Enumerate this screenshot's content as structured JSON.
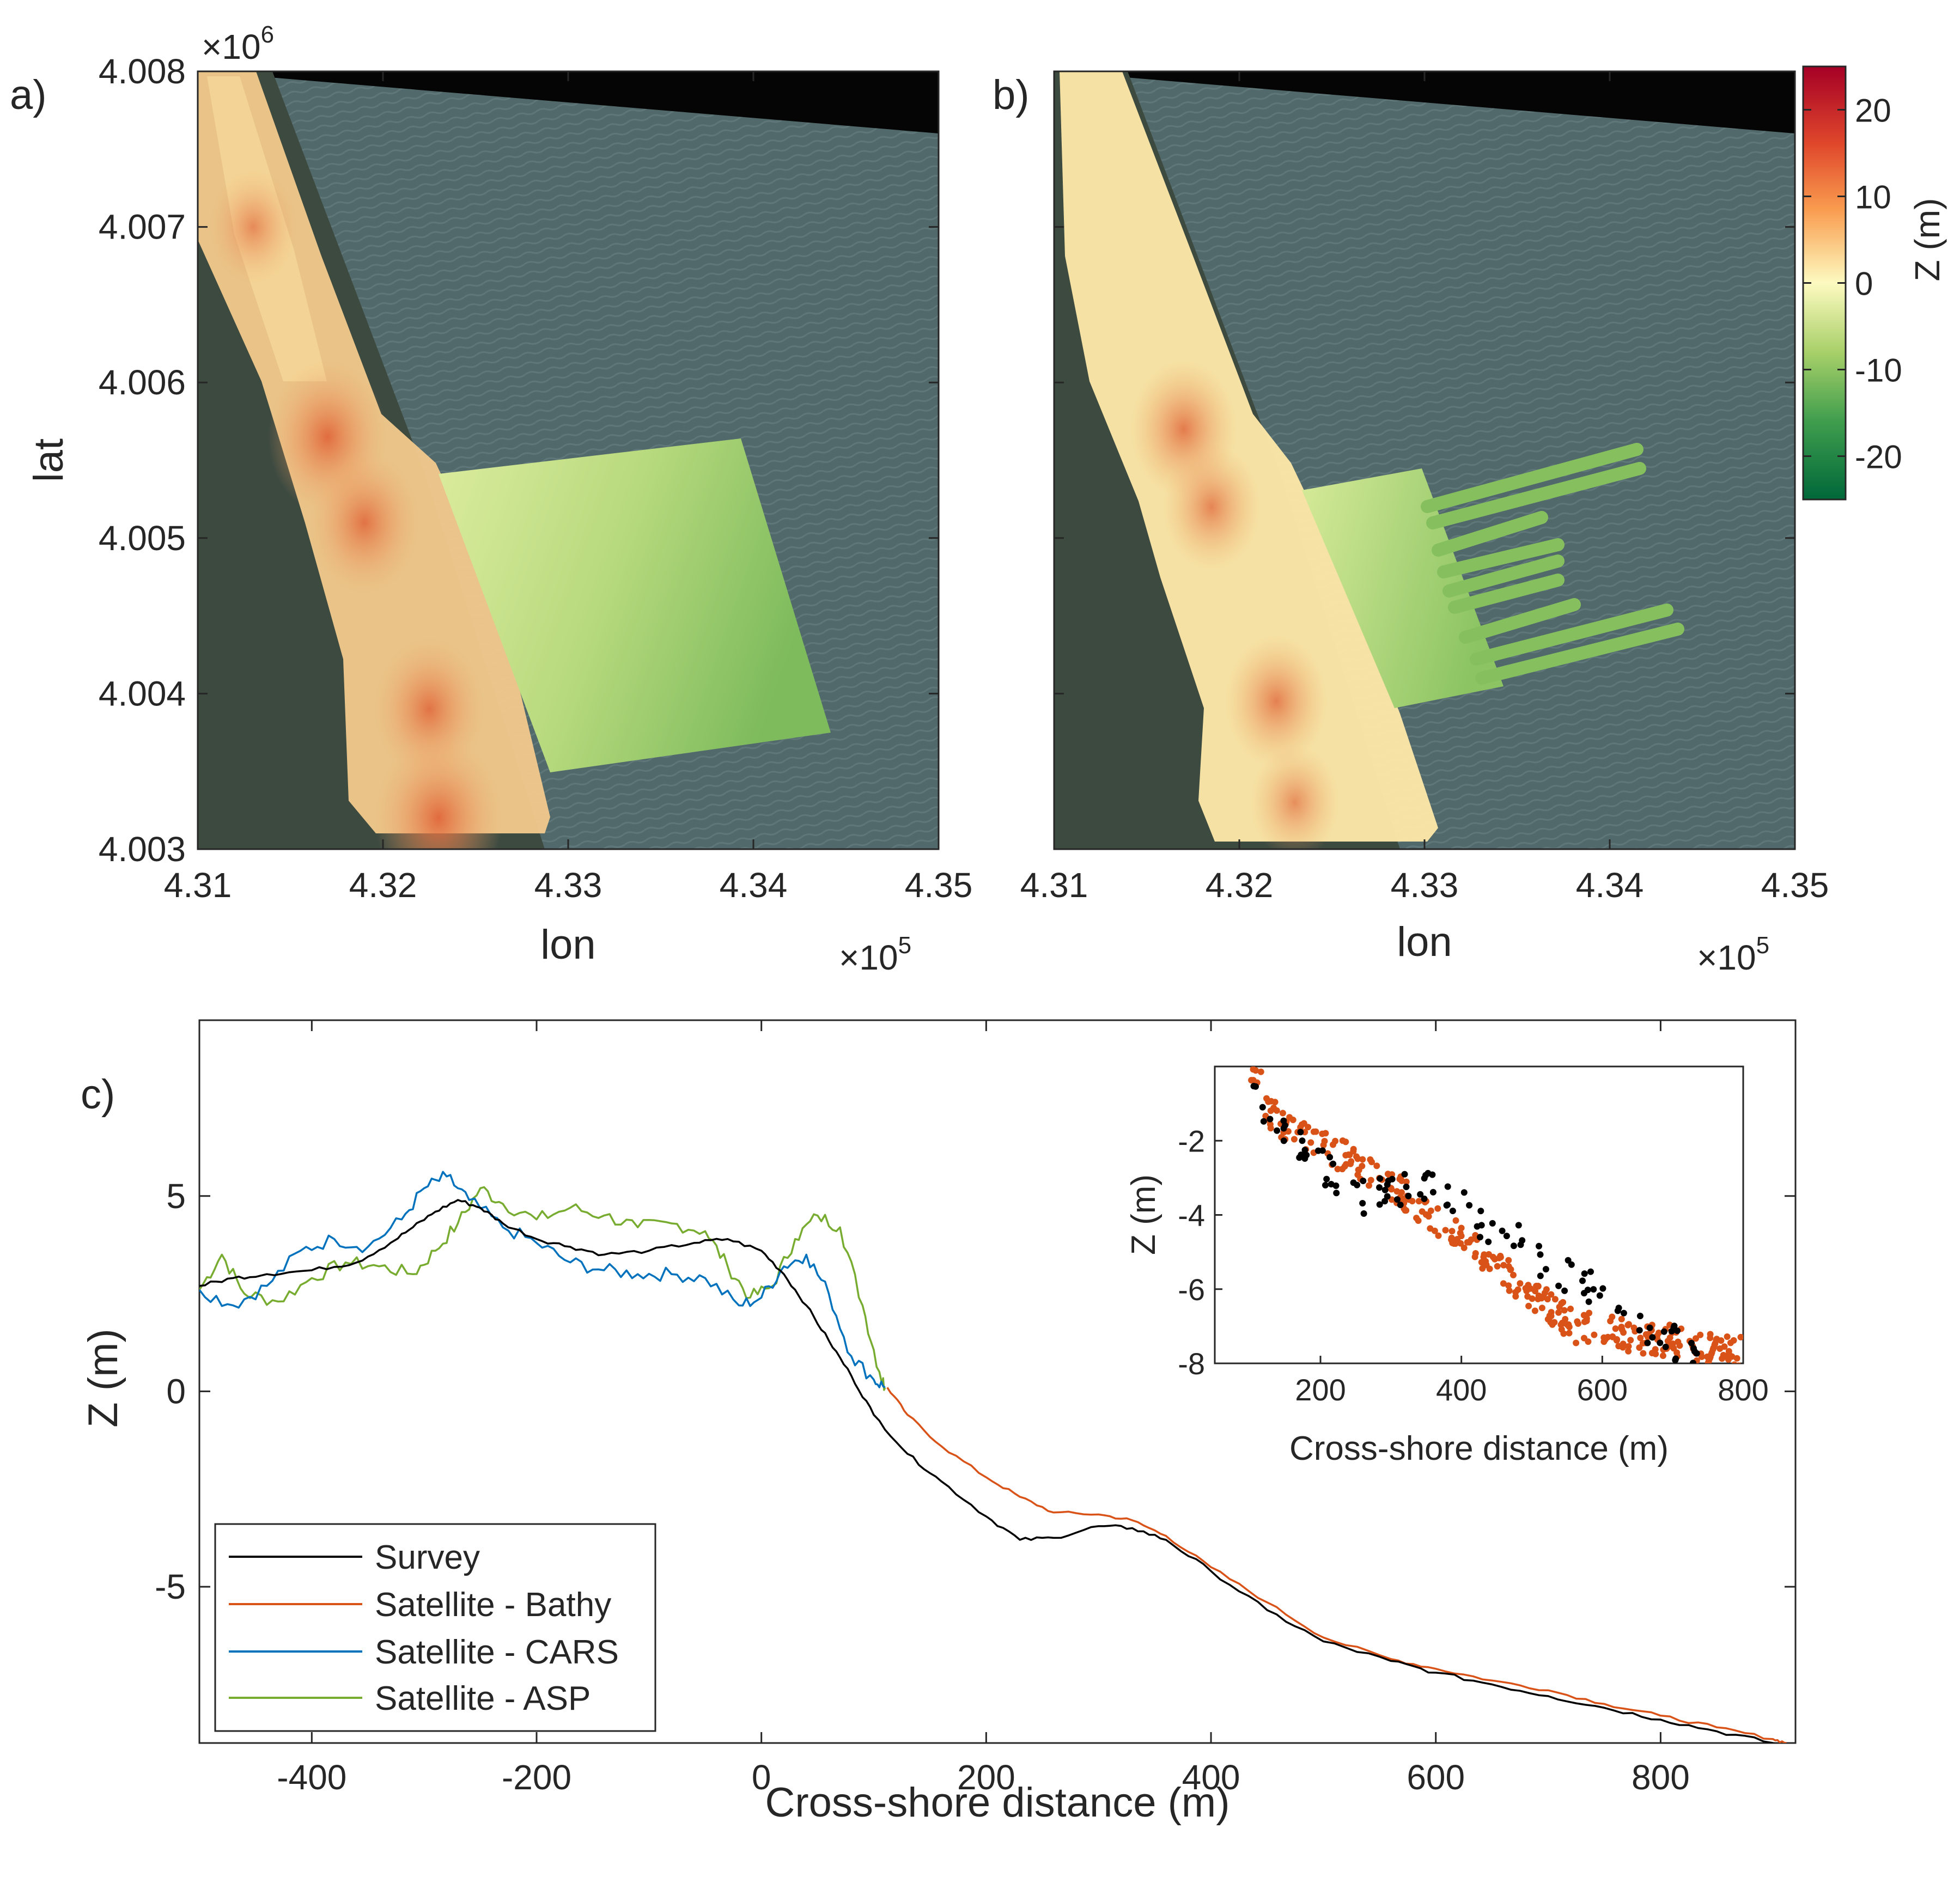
{
  "colors": {
    "survey": "#000000",
    "bathy": "#D95319",
    "cars": "#0072BD",
    "asp": "#77AC30",
    "axis": "#262626",
    "water": "#51686a",
    "land": "#3f4b43",
    "nodata": "#050505"
  },
  "chart_data": [
    {
      "id": "a",
      "type": "heatmap",
      "panel_label": "a)",
      "xlabel": "lon",
      "ylabel": "lat",
      "xlim": [
        431000,
        435000
      ],
      "ylim": [
        4003000,
        4008000
      ],
      "x_ticks": [
        "4.31",
        "4.32",
        "4.33",
        "4.34",
        "4.35"
      ],
      "y_ticks": [
        "4.003",
        "4.004",
        "4.005",
        "4.006",
        "4.007",
        "4.008"
      ],
      "x_exponent": {
        "base": "×10",
        "exp": "5"
      },
      "y_exponent": {
        "base": "×10",
        "exp": "6"
      },
      "description": "Elevation points (land dunes) and survey grid (bathymetry) over satellite imagery",
      "hotspots": [
        {
          "lon": 431700,
          "lat": 4005650,
          "z": 16
        },
        {
          "lon": 431900,
          "lat": 4005100,
          "z": 14
        },
        {
          "lon": 432250,
          "lat": 4003900,
          "z": 14
        },
        {
          "lon": 431300,
          "lat": 4007000,
          "z": 9
        },
        {
          "lon": 432300,
          "lat": 4003200,
          "z": 18
        }
      ]
    },
    {
      "id": "b",
      "type": "heatmap",
      "panel_label": "b)",
      "xlabel": "lon",
      "ylabel": "",
      "xlim": [
        431000,
        435000
      ],
      "ylim": [
        4003000,
        4008000
      ],
      "x_ticks": [
        "4.31",
        "4.32",
        "4.33",
        "4.34",
        "4.35"
      ],
      "x_exponent": {
        "base": "×10",
        "exp": "5"
      },
      "description": "Satellite-derived elevation with transect strips extending offshore",
      "hotspots": [
        {
          "lon": 431700,
          "lat": 4005700,
          "z": 13
        },
        {
          "lon": 431850,
          "lat": 4005200,
          "z": 11
        },
        {
          "lon": 432200,
          "lat": 4003950,
          "z": 12
        },
        {
          "lon": 432300,
          "lat": 4003300,
          "z": 9
        }
      ],
      "colorbar": {
        "label": "Z (m)",
        "range": [
          -25,
          25
        ],
        "ticks": [
          "20",
          "10",
          "0",
          "-10",
          "-20"
        ],
        "colormap": "green-yellow-red"
      }
    },
    {
      "id": "c",
      "type": "line",
      "panel_label": "c)",
      "xlabel": "Cross-shore distance (m)",
      "ylabel": "Z (m)",
      "xlim": [
        -500,
        920
      ],
      "ylim": [
        -9,
        9.5
      ],
      "x_ticks": [
        "-400",
        "-200",
        "0",
        "200",
        "400",
        "600",
        "800"
      ],
      "y_ticks": [
        "5",
        "0",
        "-5"
      ],
      "legend": [
        "Survey",
        "Satellite - Bathy",
        "Satellite - CARS",
        "Satellite - ASP"
      ],
      "legend_position": "bottom-left",
      "series": [
        {
          "name": "Survey",
          "x": [
            -500,
            -470,
            -440,
            -400,
            -360,
            -330,
            -310,
            -290,
            -270,
            -250,
            -230,
            -200,
            -170,
            -140,
            -100,
            -60,
            -30,
            0,
            20,
            40,
            60,
            80,
            100,
            130,
            160,
            200,
            230,
            260,
            300,
            330,
            360,
            400,
            450,
            500,
            560,
            600,
            650,
            700,
            750,
            800,
            850,
            900,
            910
          ],
          "y": [
            2.7,
            2.9,
            3.0,
            3.1,
            3.3,
            3.8,
            4.2,
            4.6,
            4.9,
            4.7,
            4.3,
            3.9,
            3.7,
            3.5,
            3.6,
            3.8,
            3.9,
            3.6,
            3.0,
            2.2,
            1.3,
            0.4,
            -0.6,
            -1.6,
            -2.3,
            -3.2,
            -3.8,
            -3.75,
            -3.45,
            -3.5,
            -3.8,
            -4.6,
            -5.6,
            -6.4,
            -6.9,
            -7.2,
            -7.5,
            -7.8,
            -8.1,
            -8.4,
            -8.7,
            -9.0,
            -9.1
          ]
        },
        {
          "name": "Satellite - Bathy",
          "x": [
            112,
            130,
            160,
            200,
            230,
            260,
            300,
            330,
            360,
            400,
            450,
            500,
            560,
            600,
            650,
            700,
            750,
            800,
            850,
            900,
            912
          ],
          "y": [
            0.1,
            -0.6,
            -1.4,
            -2.2,
            -2.7,
            -3.1,
            -3.15,
            -3.3,
            -3.7,
            -4.5,
            -5.4,
            -6.3,
            -6.85,
            -7.1,
            -7.4,
            -7.65,
            -8.0,
            -8.3,
            -8.6,
            -8.9,
            -9.0
          ]
        },
        {
          "name": "Satellite - CARS",
          "x": [
            -500,
            -470,
            -440,
            -410,
            -380,
            -350,
            -320,
            -300,
            -280,
            -260,
            -230,
            -200,
            -170,
            -140,
            -110,
            -80,
            -50,
            -20,
            0,
            20,
            40,
            60,
            80,
            100,
            110
          ],
          "y": [
            2.6,
            2.2,
            2.7,
            3.6,
            3.9,
            3.7,
            4.4,
            5.2,
            5.5,
            4.9,
            4.2,
            3.8,
            3.3,
            3.1,
            3.0,
            3.0,
            2.9,
            2.2,
            2.4,
            3.2,
            3.5,
            2.5,
            0.9,
            0.3,
            0.1
          ]
        },
        {
          "name": "Satellite - ASP",
          "x": [
            -500,
            -480,
            -460,
            -430,
            -400,
            -370,
            -340,
            -310,
            -290,
            -270,
            -250,
            -230,
            -200,
            -170,
            -140,
            -110,
            -80,
            -50,
            -30,
            -10,
            10,
            30,
            50,
            70,
            90,
            105,
            110
          ],
          "y": [
            2.6,
            3.5,
            2.5,
            2.3,
            2.9,
            3.3,
            3.2,
            3.0,
            3.6,
            4.3,
            5.2,
            4.8,
            4.4,
            4.7,
            4.5,
            4.2,
            4.3,
            4.1,
            3.2,
            2.4,
            2.7,
            3.9,
            4.5,
            4.2,
            2.2,
            0.5,
            0.1
          ]
        }
      ]
    },
    {
      "id": "c-inset",
      "type": "scatter",
      "xlabel": "Cross-shore distance (m)",
      "ylabel": "Z (m)",
      "xlim": [
        50,
        800
      ],
      "ylim": [
        -8,
        0
      ],
      "x_ticks": [
        "200",
        "400",
        "600",
        "800"
      ],
      "y_ticks": [
        "-2",
        "-4",
        "-6",
        "-8"
      ],
      "series": [
        {
          "name": "Survey",
          "color": "#000000"
        },
        {
          "name": "Satellite - Bathy",
          "color": "#D95319"
        }
      ]
    }
  ]
}
